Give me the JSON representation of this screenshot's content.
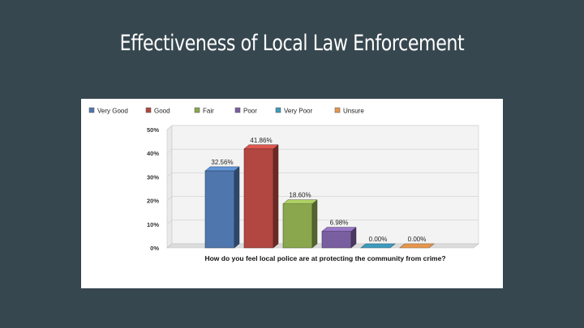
{
  "slide": {
    "title": "Effectiveness of Local Law Enforcement"
  },
  "chart_data": {
    "type": "bar",
    "title": "",
    "xlabel": "How do you feel local police are at protecting the community from crime?",
    "ylabel": "",
    "ylim": [
      0,
      50
    ],
    "yticks": [
      "0%",
      "10%",
      "20%",
      "30%",
      "40%",
      "50%"
    ],
    "categories": [
      "Very Good",
      "Good",
      "Fair",
      "Poor",
      "Very Poor",
      "Unsure"
    ],
    "values": [
      32.56,
      41.86,
      18.6,
      6.98,
      0.0,
      0.0
    ],
    "data_labels": [
      "32.56%",
      "41.86%",
      "18.60%",
      "6.98%",
      "0.00%",
      "0.00%"
    ],
    "colors": [
      "#4f77ad",
      "#b24640",
      "#8aa74e",
      "#7a5fa0",
      "#3f9bbd",
      "#e6974f"
    ],
    "legend_position": "top",
    "grid": true,
    "style": "3d-bars"
  }
}
